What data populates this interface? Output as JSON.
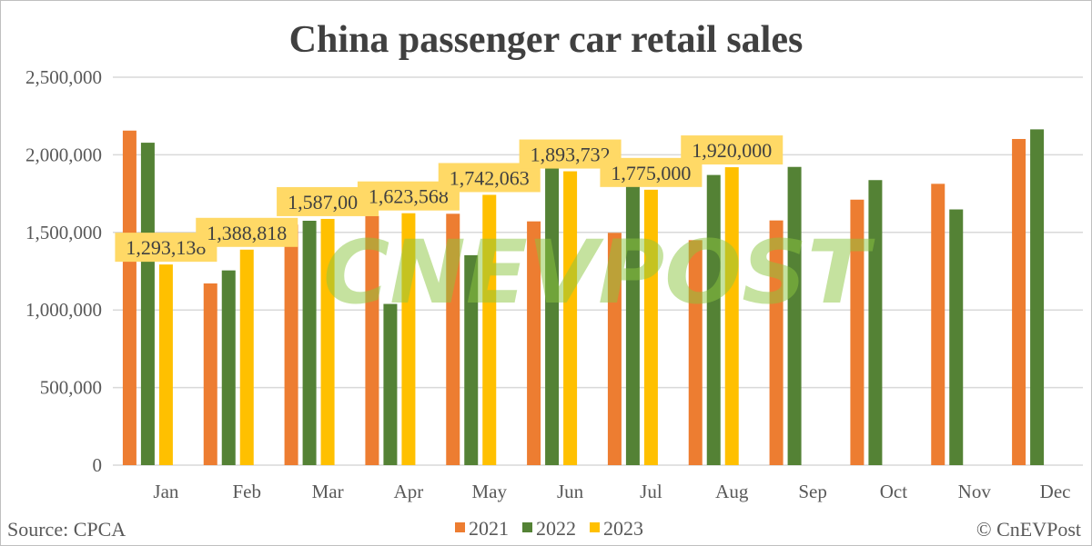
{
  "chart_data": {
    "type": "bar",
    "title": "China passenger car retail sales",
    "categories": [
      "Jan",
      "Feb",
      "Mar",
      "Apr",
      "May",
      "Jun",
      "Jul",
      "Aug",
      "Sep",
      "Oct",
      "Nov",
      "Dec"
    ],
    "series": [
      {
        "name": "2021",
        "color": "#ED7D31",
        "values": [
          2156000,
          1171000,
          1550000,
          1606000,
          1620000,
          1571000,
          1497000,
          1450000,
          1577000,
          1711000,
          1813000,
          2102000
        ]
      },
      {
        "name": "2022",
        "color": "#548235",
        "values": [
          2078000,
          1255000,
          1575000,
          1039000,
          1353000,
          1937000,
          1815000,
          1870000,
          1922000,
          1837000,
          1648000,
          2164000
        ]
      },
      {
        "name": "2023",
        "color": "#FFC000",
        "values": [
          1293138,
          1388818,
          1587000,
          1623568,
          1742063,
          1893732,
          1775000,
          1920000,
          null,
          null,
          null,
          null
        ],
        "data_labels": [
          "1,293,138",
          "1,388,818",
          "1,587,000",
          "1,623,568",
          "1,742,063",
          "1,893,732",
          "1,775,000",
          "1,920,000"
        ]
      }
    ],
    "ylim": [
      0,
      2500000
    ],
    "yticks": [
      "0",
      "500,000",
      "1,000,000",
      "1,500,000",
      "2,000,000",
      "2,500,000"
    ],
    "ytick_values": [
      0,
      500000,
      1000000,
      1500000,
      2000000,
      2500000
    ],
    "grid": true,
    "legend_placement": "bottom",
    "data_label_bg": "#FFD966",
    "xlabel": "",
    "ylabel": ""
  },
  "footer": {
    "source": "Source: CPCA",
    "copyright": "© CnEVPost"
  },
  "watermark": "CnEVPost"
}
